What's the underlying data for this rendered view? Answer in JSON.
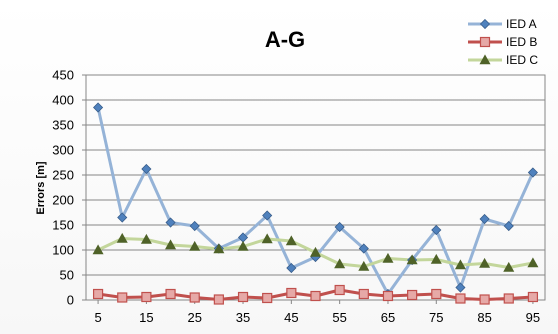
{
  "chart_data": {
    "type": "line",
    "title": "A-G",
    "xlabel": "",
    "ylabel": "Errors [m]",
    "x": [
      5,
      10,
      15,
      20,
      25,
      30,
      35,
      40,
      45,
      50,
      55,
      60,
      65,
      70,
      75,
      80,
      85,
      90,
      95
    ],
    "x_tick_labels": [
      "5",
      "15",
      "25",
      "35",
      "45",
      "55",
      "65",
      "75",
      "85",
      "95"
    ],
    "ylim": [
      0,
      450
    ],
    "y_ticks": [
      0,
      50,
      100,
      150,
      200,
      250,
      300,
      350,
      400,
      450
    ],
    "grid": "horizontal",
    "legend_position": "top-right",
    "series": [
      {
        "name": "IED A",
        "color": "#4f81bd",
        "line_color": "#95b3d7",
        "marker": "diamond",
        "values": [
          385,
          165,
          262,
          155,
          148,
          103,
          125,
          169,
          64,
          86,
          146,
          103,
          12,
          80,
          140,
          25,
          162,
          148,
          255
        ]
      },
      {
        "name": "IED B",
        "color": "#c0504d",
        "line_color": "#c0504d",
        "marker": "square",
        "values": [
          12,
          5,
          6,
          12,
          5,
          1,
          6,
          4,
          14,
          8,
          20,
          12,
          8,
          10,
          12,
          3,
          1,
          3,
          6
        ]
      },
      {
        "name": "IED C",
        "color": "#4f6228",
        "line_color": "#c3d69b",
        "marker": "triangle",
        "values": [
          100,
          123,
          121,
          110,
          107,
          102,
          107,
          122,
          118,
          95,
          72,
          67,
          83,
          80,
          81,
          70,
          73,
          65,
          74
        ]
      }
    ]
  }
}
